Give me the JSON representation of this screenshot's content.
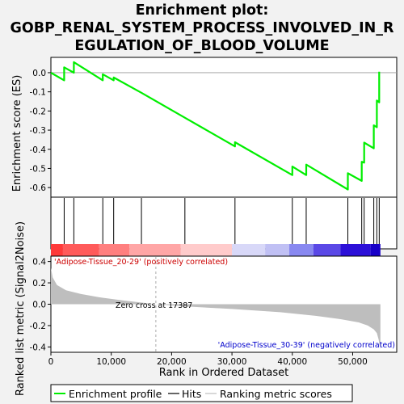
{
  "title_lines": [
    "Enrichment plot:",
    "GOBP_RENAL_SYSTEM_PROCESS_INVOLVED_IN_R",
    "EGULATION_OF_BLOOD_VOLUME"
  ],
  "axes": {
    "es_ylabel": "Enrichment score (ES)",
    "metric_ylabel": "Ranked list metric (Signal2Noise)",
    "xlabel": "Rank in Ordered Dataset"
  },
  "annotations": {
    "positive": "'Adipose-Tissue_20-29' (positively correlated)",
    "negative": "'Adipose-Tissue_30-39' (negatively correlated)",
    "zero_cross": "Zero cross at 17387"
  },
  "legend": {
    "items": [
      {
        "label": "Enrichment profile",
        "color": "#00ee00"
      },
      {
        "label": "Hits",
        "color": "#000000"
      },
      {
        "label": "Ranking metric scores",
        "color": "#bebebe"
      }
    ]
  },
  "colors": {
    "es_line": "#00ee00",
    "metric_fill": "#bebebe",
    "band_segments": [
      "#ff3a3a",
      "#ff5a5a",
      "#ff7f7f",
      "#ffa6a6",
      "#ffcbcb",
      "#d8d8f8",
      "#c0c0f4",
      "#8888f0",
      "#5a48e6",
      "#2c10d8",
      "#1800c8"
    ]
  },
  "chart_data": {
    "type": "line",
    "total_genes": 54600,
    "zero_cross": 17387,
    "xlim": [
      0,
      57300
    ],
    "es_ylim": [
      -0.65,
      0.08
    ],
    "metric_ylim": [
      -0.45,
      0.45
    ],
    "x_ticks": [
      0,
      10000,
      20000,
      30000,
      40000,
      50000
    ],
    "x_tick_labels": [
      "0",
      "10,000",
      "20,000",
      "30,000",
      "40,000",
      "50,000"
    ],
    "es_ticks": [
      0.0,
      -0.1,
      -0.2,
      -0.3,
      -0.4,
      -0.5,
      -0.6
    ],
    "es_tick_labels": [
      "0.0",
      "-0.1",
      "-0.2",
      "-0.3",
      "-0.4",
      "-0.5",
      "-0.6"
    ],
    "metric_ticks": [
      0.4,
      0.2,
      0.0,
      -0.2,
      -0.4
    ],
    "metric_tick_labels": [
      "0.4",
      "0.2",
      "0.0",
      "-0.2",
      "-0.4"
    ],
    "hits": [
      2200,
      3800,
      8600,
      10400,
      15000,
      22200,
      30500,
      40000,
      42300,
      49200,
      51500,
      51900,
      53500,
      54000,
      54400
    ],
    "es_profile": {
      "x": [
        0,
        2200,
        2200,
        3800,
        3800,
        8600,
        8600,
        10400,
        10400,
        15000,
        22200,
        30500,
        30500,
        40000,
        40000,
        42300,
        42300,
        49200,
        49200,
        51500,
        51500,
        51900,
        51900,
        53500,
        53500,
        54000,
        54000,
        54400,
        54400
      ],
      "y": [
        0.0,
        -0.04,
        0.028,
        0.0,
        0.055,
        -0.04,
        -0.008,
        -0.04,
        -0.025,
        -0.105,
        -0.235,
        -0.385,
        -0.363,
        -0.535,
        -0.49,
        -0.535,
        -0.48,
        -0.61,
        -0.525,
        -0.565,
        -0.465,
        -0.47,
        -0.365,
        -0.395,
        -0.275,
        -0.285,
        -0.145,
        -0.155,
        0.005
      ]
    },
    "metric_curve": {
      "x": [
        0,
        300,
        1000,
        2500,
        5000,
        8000,
        12000,
        17387,
        22000,
        30000,
        38000,
        44000,
        48000,
        51000,
        52500,
        53500,
        54000,
        54300,
        54600
      ],
      "y": [
        0.34,
        0.25,
        0.18,
        0.13,
        0.095,
        0.065,
        0.035,
        0.0,
        -0.02,
        -0.045,
        -0.075,
        -0.11,
        -0.14,
        -0.17,
        -0.2,
        -0.235,
        -0.27,
        -0.33,
        -0.42
      ]
    }
  }
}
